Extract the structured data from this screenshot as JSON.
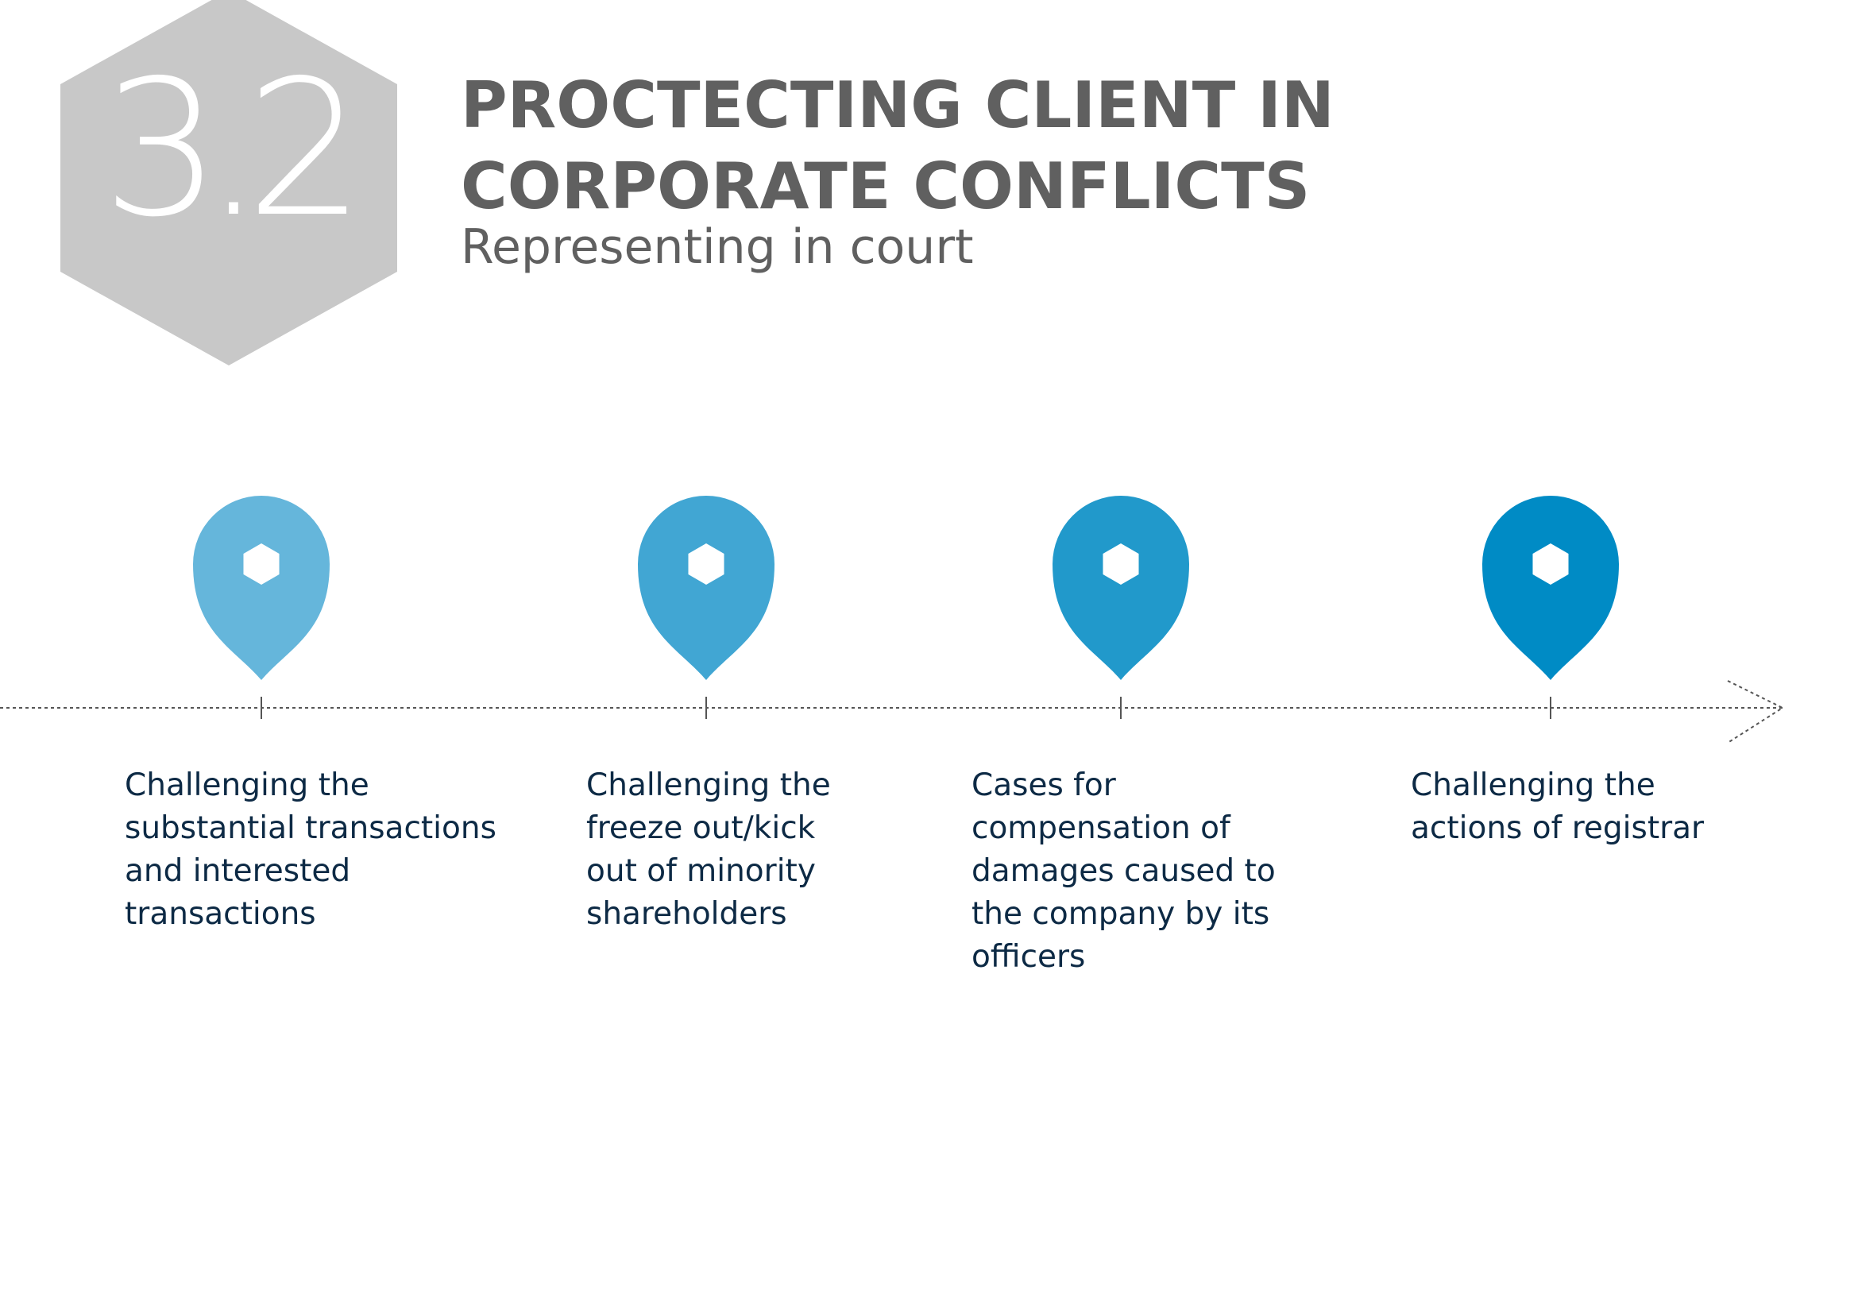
{
  "section": {
    "number": "3.2",
    "badge_color": "#c8c8c8"
  },
  "header": {
    "title": "PROCTECTING CLIENT IN CORPORATE CONFLICTS",
    "subtitle": "Representing in court"
  },
  "timeline": {
    "line_color": "#555555",
    "marker_icon": "map-pin-icon",
    "steps": [
      {
        "label": "Challenging the substantial transactions and interested transactions",
        "color": "#65b6db"
      },
      {
        "label": "Challenging the freeze out/kick out of minority shareholders",
        "color": "#41a6d3"
      },
      {
        "label": "Cases for compensation of damages caused to the company by its officers",
        "color": "#2199cb"
      },
      {
        "label": "Challenging the actions of registrar",
        "color": "#008bc5"
      }
    ]
  }
}
